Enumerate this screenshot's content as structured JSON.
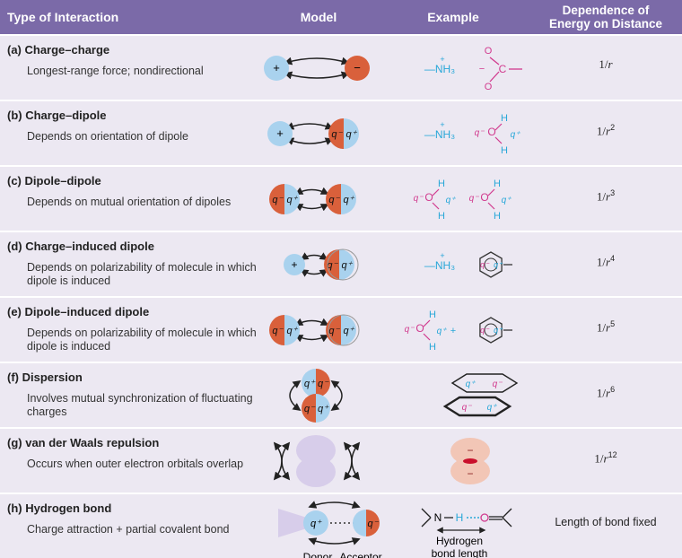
{
  "header": {
    "col_type": "Type of Interaction",
    "col_model": "Model",
    "col_example": "Example",
    "col_dependence_line1": "Dependence of",
    "col_dependence_line2": "Energy on Distance"
  },
  "rows": [
    {
      "title": "(a) Charge–charge",
      "desc": "Longest-range force; nondirectional",
      "dep_base": "1/",
      "dep_var": "r",
      "dep_exp": ""
    },
    {
      "title": "(b) Charge–dipole",
      "desc": "Depends on orientation of dipole",
      "dep_base": "1/",
      "dep_var": "r",
      "dep_exp": "2"
    },
    {
      "title": "(c) Dipole–dipole",
      "desc": "Depends on mutual orientation of dipoles",
      "dep_base": "1/",
      "dep_var": "r",
      "dep_exp": "3"
    },
    {
      "title": "(d) Charge–induced dipole",
      "desc": "Depends on polarizability of molecule in which dipole is induced",
      "dep_base": "1/",
      "dep_var": "r",
      "dep_exp": "4"
    },
    {
      "title": "(e) Dipole–induced dipole",
      "desc": "Depends on polarizability of molecule in which dipole is induced",
      "dep_base": "1/",
      "dep_var": "r",
      "dep_exp": "5"
    },
    {
      "title": "(f)  Dispersion",
      "desc": "Involves mutual synchronization of fluctuating charges",
      "dep_base": "1/",
      "dep_var": "r",
      "dep_exp": "6"
    },
    {
      "title": "(g) van der Waals repulsion",
      "desc": "Occurs when outer electron orbitals overlap",
      "dep_base": "1/",
      "dep_var": "r",
      "dep_exp": "12"
    },
    {
      "title": "(h) Hydrogen bond",
      "desc": "Charge attraction + partial covalent bond",
      "dep_text": "Length of bond fixed"
    }
  ],
  "model_labels": {
    "plus": "+",
    "minus": "−",
    "q_minus": "q⁻",
    "q_plus": "q⁺",
    "donor": "Donor",
    "acceptor": "Acceptor"
  },
  "example_labels": {
    "nh3": "—NH₃",
    "nh3_plus": "+",
    "o_atom": "O",
    "h_atom": "H",
    "c_atom": "C",
    "n_atom": "N",
    "hbond_line1": "Hydrogen",
    "hbond_line2": "bond length"
  },
  "colors": {
    "header_bg": "#7b6aa8",
    "row_bg": "#ece8f2",
    "positive": "#a9d2ee",
    "negative": "#d9603b",
    "example_cyan": "#27a7d8",
    "example_magenta": "#d13a8e",
    "orbital": "#d7cdea",
    "repulsion_fill": "#f2c6b6"
  }
}
